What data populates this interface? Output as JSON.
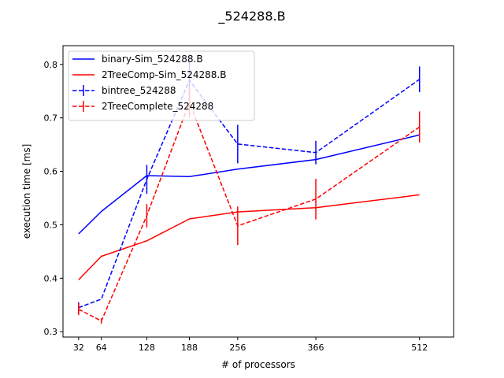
{
  "chart_data": {
    "type": "line",
    "title": "_524288.B",
    "xlabel": "# of processors",
    "ylabel": "execution time [ms]",
    "xlim": [
      10,
      560
    ],
    "ylim": [
      0.29,
      0.835
    ],
    "x_ticks": [
      32,
      64,
      128,
      188,
      256,
      366,
      512
    ],
    "y_ticks": [
      0.3,
      0.4,
      0.5,
      0.6,
      0.7,
      0.8
    ],
    "y_tick_labels": [
      "0.3",
      "0.4",
      "0.5",
      "0.6",
      "0.7",
      "0.8"
    ],
    "grid": false,
    "legend_position": "top-left",
    "series": [
      {
        "name": "binary-Sim_524288.B",
        "color": "#0000ff",
        "dashed": false,
        "x": [
          32,
          64,
          128,
          188,
          256,
          366,
          512
        ],
        "values": [
          0.483,
          0.525,
          0.592,
          0.59,
          0.604,
          0.622,
          0.668
        ]
      },
      {
        "name": "2TreeComp-Sim_524288.B",
        "color": "#ff0000",
        "dashed": false,
        "x": [
          32,
          64,
          128,
          188,
          256,
          366,
          512
        ],
        "values": [
          0.397,
          0.441,
          0.47,
          0.511,
          0.524,
          0.532,
          0.556
        ]
      },
      {
        "name": "bintree_524288",
        "color": "#0000ff",
        "dashed": true,
        "x": [
          32,
          64,
          128,
          188,
          256,
          366,
          512
        ],
        "values": [
          0.345,
          0.361,
          0.585,
          0.77,
          0.651,
          0.635,
          0.772
        ],
        "errors": [
          0.01,
          0.0,
          0.027,
          0.042,
          0.036,
          0.022,
          0.024
        ]
      },
      {
        "name": "2TreeComplete_524288",
        "color": "#ff0000",
        "dashed": true,
        "x": [
          32,
          64,
          128,
          188,
          256,
          366,
          512
        ],
        "values": [
          0.342,
          0.32,
          0.517,
          0.729,
          0.498,
          0.548,
          0.683
        ],
        "errors": [
          0.011,
          0.005,
          0.022,
          0.028,
          0.036,
          0.038,
          0.029
        ]
      }
    ]
  }
}
